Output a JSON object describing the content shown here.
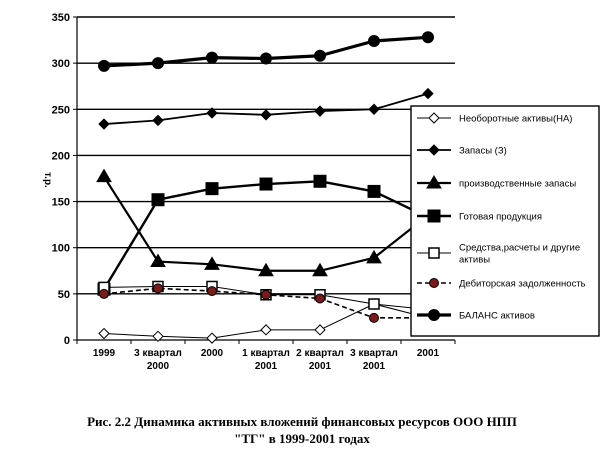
{
  "chart_data": {
    "type": "line",
    "ylabel": "т.р.",
    "xlabel": "",
    "ylim": [
      0,
      350
    ],
    "yticks": [
      0,
      50,
      100,
      150,
      200,
      250,
      300,
      350
    ],
    "grid": true,
    "legend_position": "right",
    "categories": [
      [
        "1999"
      ],
      [
        "3 квартал",
        "2000"
      ],
      [
        "2000"
      ],
      [
        "1 квартал",
        "2001"
      ],
      [
        "2 квартал",
        "2001"
      ],
      [
        "3 квартал",
        "2001"
      ],
      [
        "2001"
      ]
    ],
    "series": [
      {
        "name": "Необоротные активы(НА)",
        "marker": "diamond-open",
        "dash": false,
        "values": [
          7,
          4,
          2,
          11,
          11,
          39,
          33
        ]
      },
      {
        "name": "Запасы (З)",
        "marker": "diamond-filled",
        "dash": false,
        "values": [
          234,
          238,
          246,
          244,
          248,
          250,
          267
        ]
      },
      {
        "name": "производственные запасы",
        "marker": "triangle",
        "dash": false,
        "values": [
          177,
          85,
          82,
          75,
          75,
          89,
          135
        ]
      },
      {
        "name": "Готовая продукция",
        "marker": "square-filled",
        "dash": false,
        "values": [
          55,
          152,
          164,
          169,
          172,
          161,
          133
        ]
      },
      {
        "name": "Средства,расчеты и другие активы",
        "marker": "square-open",
        "dash": false,
        "values": [
          57,
          58,
          58,
          49,
          49,
          39,
          24
        ]
      },
      {
        "name": "Дебиторская задолженность",
        "marker": "circle-red",
        "dash": true,
        "values": [
          50,
          56,
          53,
          49,
          45,
          24,
          24
        ]
      },
      {
        "name": "БАЛАНС активов",
        "marker": "circle-black",
        "dash": false,
        "values": [
          297,
          300,
          306,
          305,
          308,
          324,
          328
        ]
      }
    ]
  },
  "caption": {
    "line1": "Рис. 2.2 Динамика активных вложений финансовых ресурсов ООО НПП",
    "line2": "\"ТГ\" в 1999-2001 годах"
  }
}
